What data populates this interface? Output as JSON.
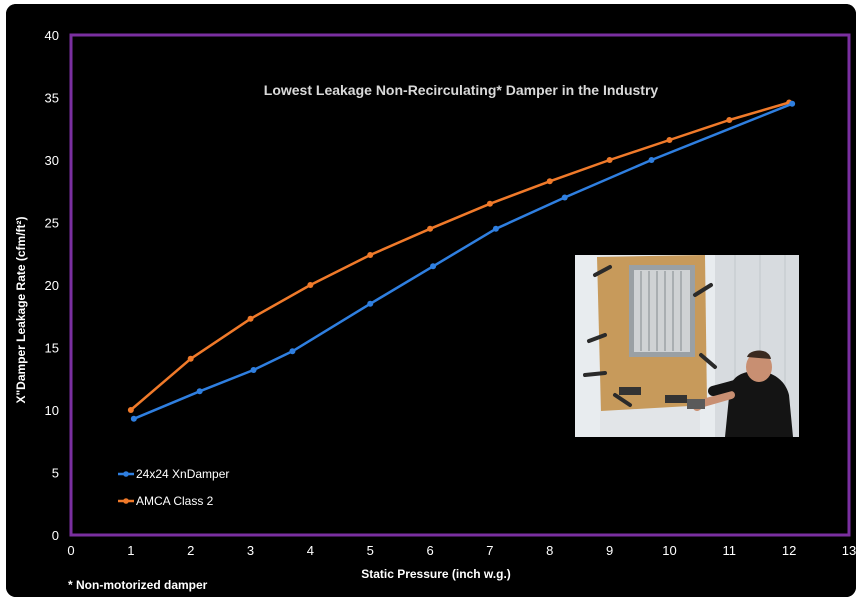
{
  "chart_data": {
    "type": "line",
    "title": "Lowest Leakage Non-Recirculating* Damper in the Industry",
    "xlabel": "Static Pressure (inch w.g.)",
    "ylabel": "X\"Damper Leakage Rate (cfm/ft²)",
    "xlim": [
      0,
      13
    ],
    "ylim": [
      0,
      40
    ],
    "xticks": [
      "0",
      "1",
      "2",
      "3",
      "4",
      "5",
      "6",
      "7",
      "8",
      "9",
      "10",
      "11",
      "12",
      "13"
    ],
    "yticks": [
      "0",
      "5",
      "10",
      "15",
      "20",
      "25",
      "30",
      "35",
      "40"
    ],
    "grid": false,
    "legend_position": "bottom-left",
    "footnote": "* Non-motorized damper",
    "series": [
      {
        "name": "24x24 XnDamper",
        "color": "#2f7fe0",
        "x": [
          1.05,
          2.15,
          3.05,
          3.7,
          5.0,
          6.05,
          7.1,
          8.25,
          9.7,
          12.05
        ],
        "y": [
          9.3,
          11.5,
          13.2,
          14.7,
          18.5,
          21.5,
          24.5,
          27.0,
          30.0,
          34.5
        ]
      },
      {
        "name": "AMCA Class 2",
        "color": "#f07a2a",
        "x": [
          1.0,
          2.0,
          3.0,
          4.0,
          5.0,
          6.0,
          7.0,
          8.0,
          9.0,
          10.0,
          11.0,
          12.0
        ],
        "y": [
          10.0,
          14.1,
          17.3,
          20.0,
          22.4,
          24.5,
          26.5,
          28.3,
          30.0,
          31.6,
          33.2,
          34.6
        ]
      }
    ]
  },
  "colors": {
    "background": "#000000",
    "plot_border": "#7a2fa0",
    "text": "#ffffff"
  },
  "photo": {
    "alt": "technician adjusting damper test fixture",
    "sky": "#e8ecef",
    "wall": "#dfe3e6",
    "panel": "#c79a5b",
    "damper": "#cfd2d4",
    "shirt": "#141414",
    "skin": "#c88f72"
  }
}
